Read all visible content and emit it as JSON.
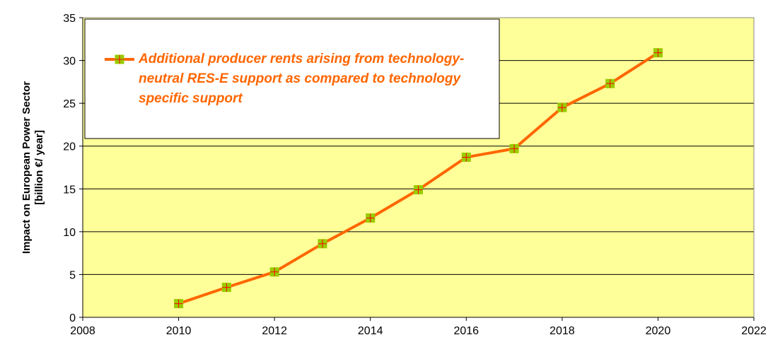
{
  "chart_data": {
    "type": "line",
    "ylabel": [
      "Impact on European Power Sector",
      "[billion €/ year]"
    ],
    "xlim": [
      2008,
      2022
    ],
    "xticks": [
      2008,
      2010,
      2012,
      2014,
      2016,
      2018,
      2020,
      2022
    ],
    "ylim": [
      0,
      35
    ],
    "yticks": [
      0,
      5,
      10,
      15,
      20,
      25,
      30,
      35
    ],
    "grid": true,
    "background": "#ffff99",
    "x": [
      2010,
      2011,
      2012,
      2013,
      2014,
      2015,
      2016,
      2017,
      2018,
      2019,
      2020
    ],
    "series": [
      {
        "name": "Additional producer rents arising from technology-neutral RES-E support as compared to technology specific support",
        "color": "#ff6600",
        "marker_color": "#99cc00",
        "values": [
          1.6,
          3.5,
          5.3,
          8.6,
          11.6,
          14.9,
          18.7,
          19.7,
          24.5,
          27.3,
          30.9
        ]
      }
    ]
  }
}
